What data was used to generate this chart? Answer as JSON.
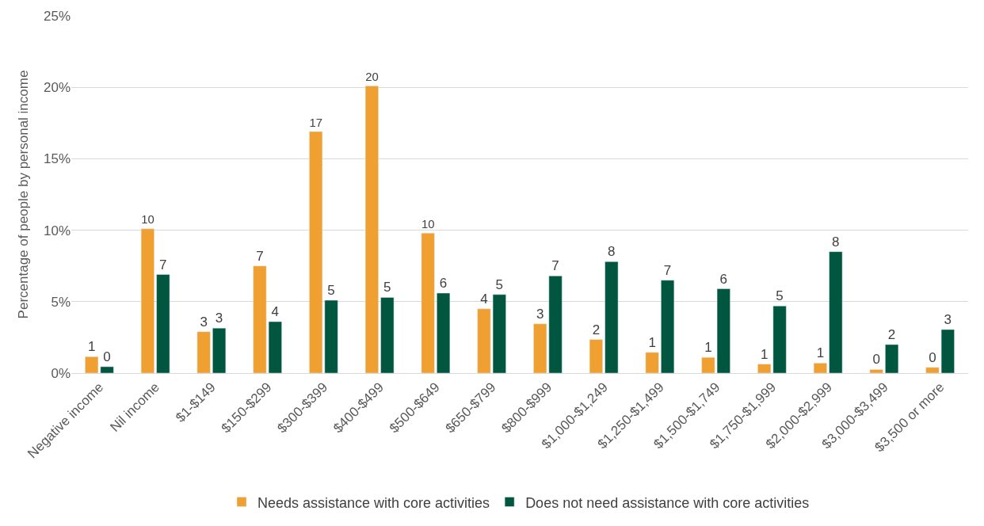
{
  "chart_data": {
    "type": "bar",
    "ylabel": "Percentage of people by personal income",
    "categories": [
      "Negative income",
      "Nil income",
      "$1-$149",
      "$150-$299",
      "$300-$399",
      "$400-$499",
      "$500-$649",
      "$650-$799",
      "$800-$999",
      "$1,000-$1,249",
      "$1,250-$1,499",
      "$1,500-$1,749",
      "$1,750-$1,999",
      "$2,000-$2,999",
      "$3,000-$3,499",
      "$3,500 or more"
    ],
    "series": [
      {
        "name": "Needs assistance with core activities",
        "color": "#f0a030",
        "values": [
          1.15,
          10.1,
          2.9,
          7.5,
          16.9,
          20.1,
          9.8,
          4.5,
          3.45,
          2.35,
          1.45,
          1.1,
          0.63,
          0.7,
          0.25,
          0.4
        ],
        "value_labels": [
          "1",
          "10",
          "3",
          "7",
          "17",
          "20",
          "10",
          "4",
          "3",
          "2",
          "1",
          "1",
          "1",
          "1",
          "0",
          "0"
        ]
      },
      {
        "name": "Does not need assistance with core activities",
        "color": "#00563f",
        "values": [
          0.45,
          6.9,
          3.15,
          3.6,
          5.1,
          5.3,
          5.6,
          5.5,
          6.8,
          7.8,
          6.5,
          5.9,
          4.7,
          8.5,
          2.0,
          3.05
        ],
        "value_labels": [
          "0",
          "7",
          "3",
          "4",
          "5",
          "5",
          "6",
          "5",
          "7",
          "8",
          "7",
          "6",
          "5",
          "8",
          "2",
          "3"
        ]
      }
    ],
    "ylim": [
      0,
      25
    ],
    "yticks": [
      {
        "value": 0,
        "label": "0%"
      },
      {
        "value": 5,
        "label": "5%"
      },
      {
        "value": 10,
        "label": "10%"
      },
      {
        "value": 15,
        "label": "15%"
      },
      {
        "value": 20,
        "label": "20%"
      },
      {
        "value": 25,
        "label": "25%"
      }
    ],
    "grid": "y",
    "legend": "bottom"
  }
}
